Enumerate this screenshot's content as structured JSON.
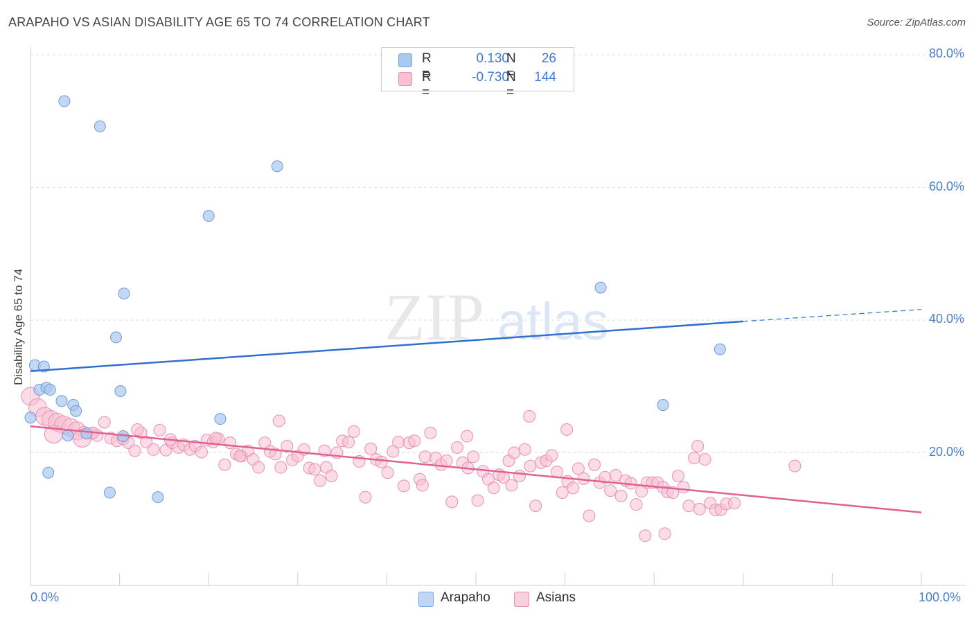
{
  "header": {
    "title": "ARAPAHO VS ASIAN DISABILITY AGE 65 TO 74 CORRELATION CHART",
    "source": "Source: ZipAtlas.com"
  },
  "watermark": {
    "zip": "ZIP",
    "atlas": "atlas"
  },
  "legend": {
    "rows": [
      {
        "r_label": "R =",
        "r_value": "0.130",
        "n_label": "N =",
        "n_value": "26",
        "color": "#aac8f0",
        "border": "#7aa6e0"
      },
      {
        "r_label": "R =",
        "r_value": "-0.730",
        "n_label": "N =",
        "n_value": "144",
        "color": "#f8c0d4",
        "border": "#e890b0"
      }
    ]
  },
  "bottom_legend": {
    "arapaho": "Arapaho",
    "asians": "Asians"
  },
  "axes": {
    "ylabel": "Disability Age 65 to 74",
    "y_ticks": [
      "20.0%",
      "40.0%",
      "60.0%",
      "80.0%"
    ],
    "x_ticks": [
      "0.0%",
      "100.0%"
    ]
  },
  "colors": {
    "arapaho_fill": "#aac8f0",
    "arapaho_stroke": "#6f9ad8",
    "arapaho_line": "#2f6fcf",
    "asians_fill": "#f8c0d4",
    "asians_stroke": "#e890b0",
    "asians_line": "#e0608f",
    "grid": "#dddddd"
  },
  "chart_data": {
    "type": "scatter",
    "title": "ARAPAHO VS ASIAN DISABILITY AGE 65 TO 74 CORRELATION CHART",
    "xlabel": "",
    "ylabel": "Disability Age 65 to 74",
    "xlim": [
      0,
      100
    ],
    "ylim": [
      0,
      82
    ],
    "grid": true,
    "legend_position": "top-center",
    "series": [
      {
        "name": "Arapaho",
        "r": 0.13,
        "n": 26,
        "trend": {
          "x0": 0,
          "y0": 32.3,
          "x1": 80,
          "y1": 39.8,
          "dashed_to": 100,
          "dashed_y": 41.6
        },
        "points": [
          [
            0.0,
            25.3
          ],
          [
            0.5,
            33.2
          ],
          [
            1.5,
            33.0
          ],
          [
            1.0,
            29.5
          ],
          [
            1.8,
            29.8
          ],
          [
            2.2,
            29.5
          ],
          [
            3.5,
            27.8
          ],
          [
            4.8,
            27.2
          ],
          [
            5.1,
            26.3
          ],
          [
            2.0,
            17.0
          ],
          [
            6.3,
            22.9
          ],
          [
            4.2,
            22.6
          ],
          [
            3.8,
            73.0
          ],
          [
            7.8,
            69.2
          ],
          [
            27.7,
            63.2
          ],
          [
            20.0,
            55.7
          ],
          [
            10.5,
            44.0
          ],
          [
            9.6,
            37.4
          ],
          [
            10.1,
            29.3
          ],
          [
            10.4,
            22.5
          ],
          [
            8.9,
            14.0
          ],
          [
            14.3,
            13.3
          ],
          [
            21.3,
            25.1
          ],
          [
            64.0,
            44.9
          ],
          [
            77.4,
            35.6
          ],
          [
            71.0,
            27.2
          ]
        ]
      },
      {
        "name": "Asians",
        "r": -0.73,
        "n": 144,
        "trend": {
          "x0": 0,
          "y0": 24.0,
          "x1": 100,
          "y1": 11.0
        },
        "points": [
          [
            0.0,
            28.5
          ],
          [
            0.8,
            26.8
          ],
          [
            1.6,
            25.5
          ],
          [
            2.3,
            25.0
          ],
          [
            3.0,
            24.6
          ],
          [
            3.7,
            24.2
          ],
          [
            4.5,
            23.8
          ],
          [
            5.2,
            23.3
          ],
          [
            6.0,
            23.1
          ],
          [
            6.8,
            22.9
          ],
          [
            7.5,
            22.6
          ],
          [
            8.3,
            24.6
          ],
          [
            9.0,
            22.2
          ],
          [
            9.7,
            21.8
          ],
          [
            10.4,
            22.1
          ],
          [
            11.0,
            21.5
          ],
          [
            11.7,
            20.3
          ],
          [
            12.4,
            23.0
          ],
          [
            13.0,
            21.6
          ],
          [
            13.8,
            20.5
          ],
          [
            14.5,
            23.4
          ],
          [
            15.2,
            20.4
          ],
          [
            15.9,
            21.5
          ],
          [
            16.6,
            20.8
          ],
          [
            17.2,
            21.2
          ],
          [
            17.9,
            20.5
          ],
          [
            18.5,
            21.0
          ],
          [
            19.2,
            20.1
          ],
          [
            19.8,
            21.9
          ],
          [
            20.5,
            21.6
          ],
          [
            21.1,
            22.1
          ],
          [
            21.8,
            18.2
          ],
          [
            22.4,
            21.5
          ],
          [
            23.1,
            19.8
          ],
          [
            23.7,
            19.5
          ],
          [
            24.4,
            20.3
          ],
          [
            25.0,
            19.0
          ],
          [
            25.6,
            17.8
          ],
          [
            26.3,
            21.5
          ],
          [
            26.9,
            20.2
          ],
          [
            27.5,
            19.8
          ],
          [
            28.1,
            17.8
          ],
          [
            27.9,
            24.8
          ],
          [
            28.8,
            21.0
          ],
          [
            29.4,
            18.9
          ],
          [
            30.0,
            19.5
          ],
          [
            30.7,
            20.5
          ],
          [
            31.3,
            17.7
          ],
          [
            31.9,
            17.5
          ],
          [
            32.5,
            15.8
          ],
          [
            33.2,
            17.8
          ],
          [
            33.8,
            16.5
          ],
          [
            34.4,
            20.0
          ],
          [
            35.0,
            21.8
          ],
          [
            35.7,
            21.6
          ],
          [
            36.3,
            23.2
          ],
          [
            36.9,
            18.7
          ],
          [
            37.6,
            13.3
          ],
          [
            38.2,
            20.6
          ],
          [
            38.8,
            19.0
          ],
          [
            39.4,
            18.6
          ],
          [
            40.1,
            17.0
          ],
          [
            40.7,
            20.2
          ],
          [
            41.3,
            21.6
          ],
          [
            41.9,
            15.0
          ],
          [
            42.5,
            21.5
          ],
          [
            43.1,
            21.8
          ],
          [
            43.7,
            16.0
          ],
          [
            44.3,
            19.4
          ],
          [
            44.9,
            23.0
          ],
          [
            45.5,
            19.2
          ],
          [
            46.1,
            18.2
          ],
          [
            46.7,
            18.8
          ],
          [
            47.3,
            12.6
          ],
          [
            47.9,
            20.8
          ],
          [
            48.5,
            18.5
          ],
          [
            49.1,
            17.7
          ],
          [
            49.7,
            19.4
          ],
          [
            50.2,
            12.8
          ],
          [
            50.8,
            17.2
          ],
          [
            51.4,
            16.0
          ],
          [
            52.0,
            14.7
          ],
          [
            52.6,
            16.7
          ],
          [
            53.1,
            16.3
          ],
          [
            53.7,
            18.8
          ],
          [
            54.3,
            20.0
          ],
          [
            54.9,
            16.5
          ],
          [
            55.5,
            20.5
          ],
          [
            56.1,
            18.0
          ],
          [
            56.7,
            12.0
          ],
          [
            57.3,
            18.5
          ],
          [
            57.9,
            18.8
          ],
          [
            58.5,
            19.6
          ],
          [
            59.1,
            17.1
          ],
          [
            59.7,
            14.0
          ],
          [
            60.3,
            15.7
          ],
          [
            60.9,
            14.7
          ],
          [
            61.5,
            17.6
          ],
          [
            62.1,
            16.1
          ],
          [
            62.7,
            10.5
          ],
          [
            63.3,
            18.2
          ],
          [
            63.9,
            15.5
          ],
          [
            64.5,
            16.3
          ],
          [
            65.1,
            14.3
          ],
          [
            65.7,
            16.6
          ],
          [
            66.3,
            13.5
          ],
          [
            66.8,
            15.8
          ],
          [
            67.4,
            15.4
          ],
          [
            68.0,
            12.2
          ],
          [
            68.6,
            14.2
          ],
          [
            69.2,
            15.5
          ],
          [
            69.8,
            15.5
          ],
          [
            70.4,
            15.5
          ],
          [
            71.0,
            14.8
          ],
          [
            71.5,
            14.1
          ],
          [
            72.1,
            14.0
          ],
          [
            72.7,
            16.5
          ],
          [
            73.3,
            14.8
          ],
          [
            73.9,
            12.0
          ],
          [
            74.5,
            19.2
          ],
          [
            75.1,
            11.5
          ],
          [
            75.7,
            19.0
          ],
          [
            76.3,
            12.4
          ],
          [
            74.9,
            21.0
          ],
          [
            76.9,
            11.4
          ],
          [
            77.5,
            11.4
          ],
          [
            78.1,
            12.3
          ],
          [
            56.0,
            25.5
          ],
          [
            69.0,
            7.5
          ],
          [
            71.2,
            7.8
          ],
          [
            85.8,
            18.0
          ],
          [
            79.0,
            12.4
          ],
          [
            60.2,
            23.5
          ],
          [
            20.8,
            22.2
          ],
          [
            23.5,
            19.5
          ],
          [
            33.0,
            20.3
          ],
          [
            44.0,
            15.1
          ],
          [
            49.0,
            22.5
          ],
          [
            54.0,
            15.1
          ],
          [
            12.0,
            23.5
          ],
          [
            2.6,
            22.8
          ],
          [
            7.0,
            23.0
          ],
          [
            5.8,
            22.2
          ],
          [
            15.7,
            22.0
          ]
        ]
      }
    ]
  }
}
